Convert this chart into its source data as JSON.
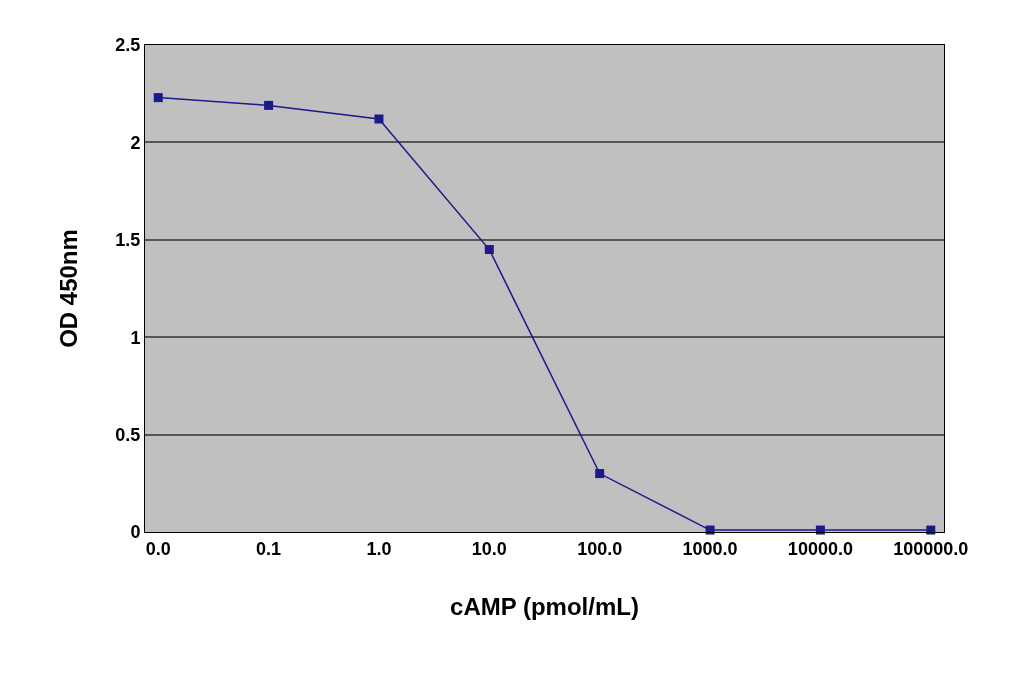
{
  "chart_data": {
    "type": "line",
    "xlabel": "cAMP (pmol/mL)",
    "ylabel": "OD 450nm",
    "categories": [
      "0.0",
      "0.1",
      "1.0",
      "10.0",
      "100.0",
      "1000.0",
      "10000.0",
      "100000.0"
    ],
    "series": [
      {
        "color": "#1a1a8c",
        "values": [
          2.23,
          2.19,
          2.12,
          1.45,
          0.3,
          0.01,
          0.01,
          0.01
        ]
      }
    ],
    "ylim": [
      0,
      2.5
    ],
    "yticks": [
      0,
      0.5,
      1,
      1.5,
      2,
      2.5
    ],
    "grid": "y",
    "marker": "square",
    "line_style": "solid",
    "legend": false
  }
}
